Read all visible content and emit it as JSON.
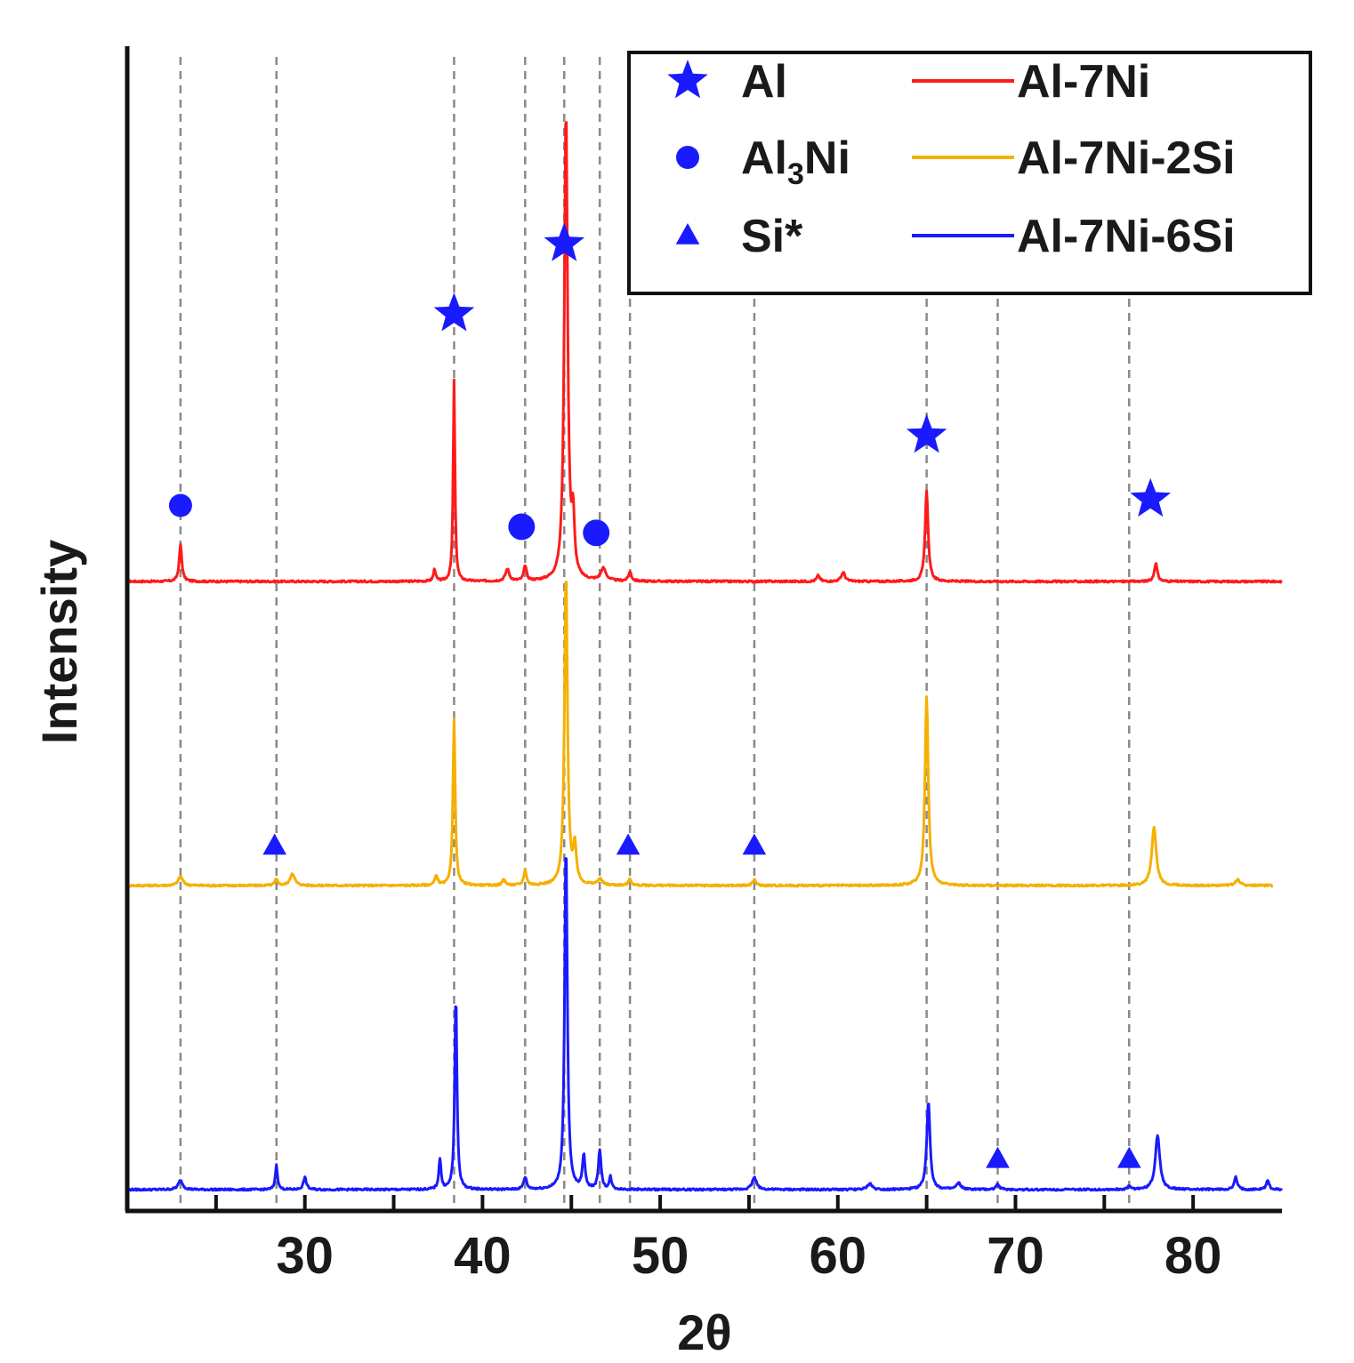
{
  "chart_data": {
    "type": "line",
    "title": "",
    "xlabel": "2θ",
    "ylabel": "Intensity",
    "xlim": [
      20,
      85
    ],
    "ylim": [
      0,
      3.25
    ],
    "x_ticks": [
      30,
      40,
      50,
      60,
      70,
      80
    ],
    "x_minor_ticks": [
      25,
      35,
      45,
      55,
      65,
      75
    ],
    "y_ticks_shown": false,
    "grid": "dashed vertical reference lines at peak positions",
    "reference_lines_x": [
      23.0,
      28.4,
      38.4,
      42.4,
      44.6,
      46.6,
      48.3,
      55.3,
      65.0,
      69.0,
      76.4
    ],
    "series": [
      {
        "name": "Al-7Ni",
        "color": "#ff1a1a",
        "baseline": 2.0,
        "x_range": [
          20,
          85
        ],
        "peaks": [
          {
            "x": 23.0,
            "h": 0.12,
            "w": 0.18
          },
          {
            "x": 37.3,
            "h": 0.04,
            "w": 0.15
          },
          {
            "x": 38.4,
            "h": 0.66,
            "w": 0.12
          },
          {
            "x": 41.4,
            "h": 0.04,
            "w": 0.25
          },
          {
            "x": 42.4,
            "h": 0.05,
            "w": 0.18
          },
          {
            "x": 44.7,
            "h": 1.55,
            "w": 0.22
          },
          {
            "x": 45.1,
            "h": 0.18,
            "w": 0.18
          },
          {
            "x": 46.8,
            "h": 0.04,
            "w": 0.35
          },
          {
            "x": 48.3,
            "h": 0.03,
            "w": 0.2
          },
          {
            "x": 58.9,
            "h": 0.02,
            "w": 0.2
          },
          {
            "x": 60.3,
            "h": 0.03,
            "w": 0.25
          },
          {
            "x": 65.0,
            "h": 0.3,
            "w": 0.2
          },
          {
            "x": 77.9,
            "h": 0.06,
            "w": 0.2
          }
        ]
      },
      {
        "name": "Al-7Ni-2Si",
        "color": "#f5b000",
        "baseline": 1.0,
        "x_range": [
          20,
          84.5
        ],
        "peaks": [
          {
            "x": 23.0,
            "h": 0.03,
            "w": 0.3
          },
          {
            "x": 28.4,
            "h": 0.02,
            "w": 0.2
          },
          {
            "x": 29.3,
            "h": 0.04,
            "w": 0.3
          },
          {
            "x": 37.4,
            "h": 0.03,
            "w": 0.2
          },
          {
            "x": 38.4,
            "h": 0.55,
            "w": 0.15
          },
          {
            "x": 41.2,
            "h": 0.02,
            "w": 0.2
          },
          {
            "x": 42.4,
            "h": 0.05,
            "w": 0.18
          },
          {
            "x": 44.7,
            "h": 1.03,
            "w": 0.2
          },
          {
            "x": 45.2,
            "h": 0.12,
            "w": 0.2
          },
          {
            "x": 46.6,
            "h": 0.02,
            "w": 0.3
          },
          {
            "x": 48.3,
            "h": 0.02,
            "w": 0.2
          },
          {
            "x": 55.3,
            "h": 0.02,
            "w": 0.2
          },
          {
            "x": 65.0,
            "h": 0.62,
            "w": 0.22
          },
          {
            "x": 77.8,
            "h": 0.19,
            "w": 0.3
          },
          {
            "x": 82.5,
            "h": 0.02,
            "w": 0.3
          }
        ]
      },
      {
        "name": "Al-7Ni-6Si",
        "color": "#1a1aff",
        "baseline": 0.0,
        "x_range": [
          20,
          85
        ],
        "peaks": [
          {
            "x": 23.0,
            "h": 0.03,
            "w": 0.3
          },
          {
            "x": 28.4,
            "h": 0.08,
            "w": 0.15
          },
          {
            "x": 30.0,
            "h": 0.04,
            "w": 0.2
          },
          {
            "x": 37.6,
            "h": 0.1,
            "w": 0.15
          },
          {
            "x": 38.5,
            "h": 0.64,
            "w": 0.15
          },
          {
            "x": 42.4,
            "h": 0.04,
            "w": 0.2
          },
          {
            "x": 44.7,
            "h": 1.14,
            "w": 0.18
          },
          {
            "x": 45.7,
            "h": 0.11,
            "w": 0.18
          },
          {
            "x": 46.6,
            "h": 0.13,
            "w": 0.18
          },
          {
            "x": 47.2,
            "h": 0.04,
            "w": 0.15
          },
          {
            "x": 55.3,
            "h": 0.04,
            "w": 0.3
          },
          {
            "x": 61.8,
            "h": 0.02,
            "w": 0.3
          },
          {
            "x": 65.1,
            "h": 0.29,
            "w": 0.22
          },
          {
            "x": 66.8,
            "h": 0.02,
            "w": 0.3
          },
          {
            "x": 69.0,
            "h": 0.02,
            "w": 0.2
          },
          {
            "x": 76.4,
            "h": 0.01,
            "w": 0.2
          },
          {
            "x": 78.0,
            "h": 0.18,
            "w": 0.3
          },
          {
            "x": 82.4,
            "h": 0.04,
            "w": 0.2
          },
          {
            "x": 84.2,
            "h": 0.03,
            "w": 0.2
          }
        ]
      }
    ],
    "annotations": [
      {
        "phase": "Al",
        "marker": "star",
        "x": 44.6,
        "y": 3.11
      },
      {
        "phase": "Al",
        "marker": "star",
        "x": 38.4,
        "y": 2.88
      },
      {
        "phase": "Al",
        "marker": "star",
        "x": 65.0,
        "y": 2.48
      },
      {
        "phase": "Al",
        "marker": "star",
        "x": 77.6,
        "y": 2.27
      },
      {
        "phase": "Al3Ni",
        "marker": "circle",
        "x": 23.0,
        "y": 2.25
      },
      {
        "phase": "Al3Ni",
        "marker": "circle",
        "x": 42.2,
        "y": 2.18
      },
      {
        "phase": "Al3Ni",
        "marker": "circle",
        "x": 46.4,
        "y": 2.16
      },
      {
        "phase": "Si*",
        "marker": "triangle",
        "x": 28.3,
        "y": 1.13
      },
      {
        "phase": "Si*",
        "marker": "triangle",
        "x": 48.2,
        "y": 1.13
      },
      {
        "phase": "Si*",
        "marker": "triangle",
        "x": 55.3,
        "y": 1.13
      },
      {
        "phase": "Si*",
        "marker": "triangle",
        "x": 69.0,
        "y": 0.1
      },
      {
        "phase": "Si*",
        "marker": "triangle",
        "x": 76.4,
        "y": 0.1
      }
    ],
    "legend": {
      "position": "top-right",
      "marker_color": "#1a1aff",
      "markers": [
        {
          "symbol": "star",
          "label_main": "Al",
          "label_sub": "",
          "label_tail": ""
        },
        {
          "symbol": "circle",
          "label_main": "Al",
          "label_sub": "3",
          "label_tail": "Ni"
        },
        {
          "symbol": "triangle",
          "label_main": "Si*",
          "label_sub": "",
          "label_tail": ""
        }
      ],
      "lines": [
        {
          "label": "Al-7Ni",
          "color": "#ff1a1a"
        },
        {
          "label": "Al-7Ni-2Si",
          "color": "#f5b000"
        },
        {
          "label": "Al-7Ni-6Si",
          "color": "#1a1aff"
        }
      ]
    }
  }
}
